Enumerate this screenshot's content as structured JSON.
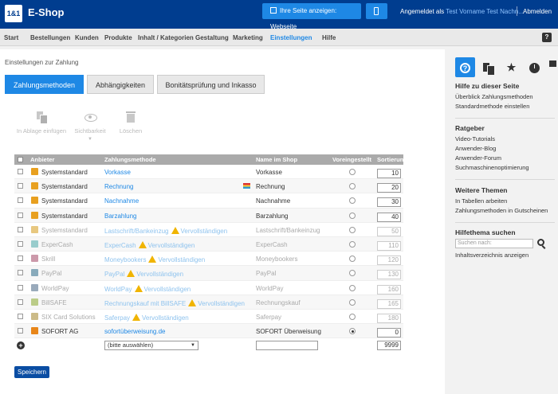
{
  "header": {
    "logo": "1&1",
    "title": "E-Shop",
    "show_site_label": "Ihre Seite anzeigen: Webseite",
    "logged_in_prefix": "Angemeldet als",
    "user": "Test Vorname Test Nachn...",
    "logout": "Abmelden"
  },
  "nav": {
    "items": [
      "Start",
      "Bestellungen",
      "Kunden",
      "Produkte",
      "Inhalt / Kategorien",
      "Gestaltung",
      "Marketing",
      "Einstellungen",
      "Hilfe"
    ],
    "active": "Einstellungen",
    "help_icon": "?"
  },
  "main": {
    "breadcrumb": "Einstellungen zur Zahlung",
    "tabs": [
      "Zahlungsmethoden",
      "Abhängigkeiten",
      "Bonitätsprüfung und Inkasso"
    ],
    "toolbar": {
      "copy": "In Ablage einfügen",
      "visible": "Sichtbarkeit",
      "delete": "Löschen"
    },
    "table": {
      "headers": [
        "Anbieter",
        "Zahlungsmethode",
        "Name im Shop",
        "Voreingestellt",
        "Sortierung"
      ],
      "rows": [
        {
          "provider": "Systemstandard",
          "method": "Vorkasse",
          "warn": "",
          "name": "Vorkasse",
          "sort": "10",
          "inactive": false,
          "selected": false,
          "flag": false,
          "color": "#e8a020"
        },
        {
          "provider": "Systemstandard",
          "method": "Rechnung",
          "warn": "",
          "name": "Rechnung",
          "sort": "20",
          "inactive": false,
          "selected": false,
          "flag": true,
          "color": "#e8a020"
        },
        {
          "provider": "Systemstandard",
          "method": "Nachnahme",
          "warn": "",
          "name": "Nachnahme",
          "sort": "30",
          "inactive": false,
          "selected": false,
          "flag": false,
          "color": "#e8a020"
        },
        {
          "provider": "Systemstandard",
          "method": "Barzahlung",
          "warn": "",
          "name": "Barzahlung",
          "sort": "40",
          "inactive": false,
          "selected": false,
          "flag": false,
          "color": "#e8a020"
        },
        {
          "provider": "Systemstandard",
          "method": "Lastschrift/Bankeinzug",
          "warn": "Vervollständigen",
          "name": "Lastschrift/Bankeinzug",
          "sort": "50",
          "inactive": true,
          "selected": false,
          "flag": false,
          "color": "#e8c880"
        },
        {
          "provider": "ExperCash",
          "method": "ExperCash",
          "warn": "Vervollständigen",
          "name": "ExperCash",
          "sort": "110",
          "inactive": true,
          "selected": false,
          "flag": false,
          "color": "#9cc"
        },
        {
          "provider": "Skrill",
          "method": "Moneybookers",
          "warn": "Vervollständigen",
          "name": "Moneybookers",
          "sort": "120",
          "inactive": true,
          "selected": false,
          "flag": false,
          "color": "#c9a"
        },
        {
          "provider": "PayPal",
          "method": "PayPal",
          "warn": "Vervollständigen",
          "name": "PayPal",
          "sort": "130",
          "inactive": true,
          "selected": false,
          "flag": false,
          "color": "#8ab"
        },
        {
          "provider": "WorldPay",
          "method": "WorldPay",
          "warn": "Vervollständigen",
          "name": "WorldPay",
          "sort": "160",
          "inactive": true,
          "selected": false,
          "flag": false,
          "color": "#9ab"
        },
        {
          "provider": "BillSAFE",
          "method": "Rechnungskauf mit BillSAFE",
          "warn": "Vervollständigen",
          "name": "Rechnungskauf",
          "sort": "165",
          "inactive": true,
          "selected": false,
          "flag": false,
          "color": "#bc8"
        },
        {
          "provider": "SIX Card Solutions",
          "method": "Saferpay",
          "warn": "Vervollständigen",
          "name": "Saferpay",
          "sort": "180",
          "inactive": true,
          "selected": false,
          "flag": false,
          "color": "#cb8"
        },
        {
          "provider": "SOFORT AG",
          "method": "sofortüberweisung.de",
          "warn": "",
          "name": "SOFORT Überweisung",
          "sort": "0",
          "inactive": false,
          "selected": true,
          "flag": false,
          "color": "#e8861a"
        }
      ],
      "add_select": "(bitte auswählen)",
      "add_sort": "9999"
    },
    "save": "Speichern"
  },
  "sidebar": {
    "help_title": "Hilfe zu dieser Seite",
    "help_links": [
      "Überblick Zahlungsmethoden",
      "Standardmethode einstellen"
    ],
    "guide_title": "Ratgeber",
    "guide_links": [
      "Video-Tutorials",
      "Anwender-Blog",
      "Anwender-Forum",
      "Suchmaschinenoptimierung"
    ],
    "more_title": "Weitere Themen",
    "more_links": [
      "In Tabellen arbeiten",
      "Zahlungsmethoden in Gutscheinen"
    ],
    "search_title": "Hilfethema suchen",
    "search_placeholder": "Suchen nach:",
    "index_link": "Inhaltsverzeichnis anzeigen"
  }
}
